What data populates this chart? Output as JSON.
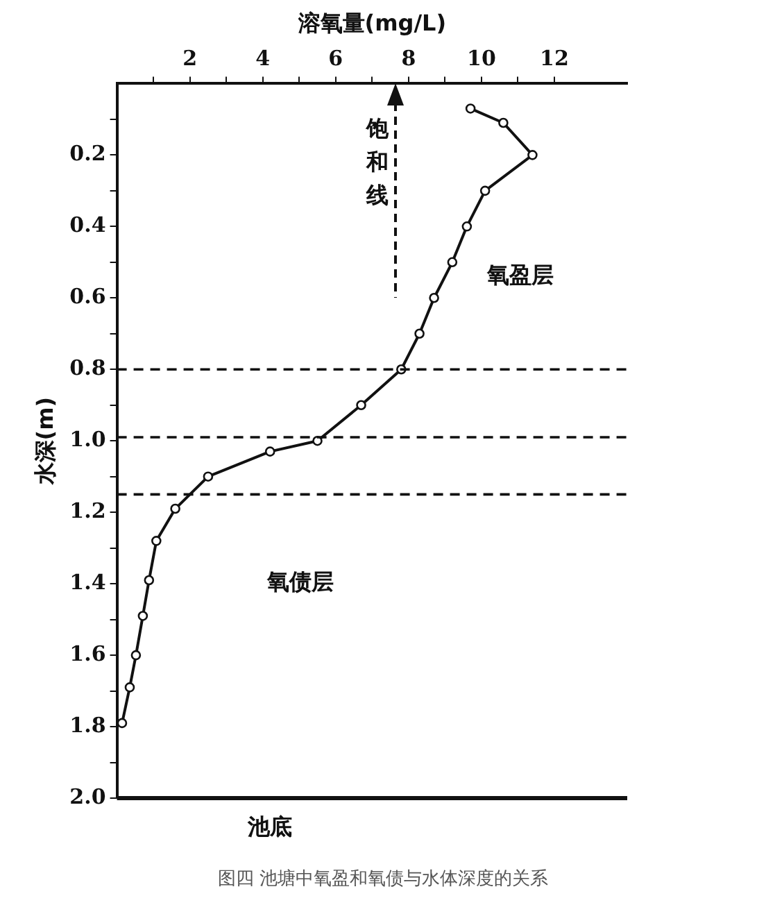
{
  "chart_data": {
    "type": "line",
    "xlabel": "溶氧量(mg/L)",
    "ylabel": "水深(m)",
    "xlim": [
      0,
      14
    ],
    "xticks": [
      {
        "value": 1,
        "label": null
      },
      2,
      {
        "value": 3,
        "label": null
      },
      4,
      {
        "value": 5,
        "label": null
      },
      6,
      {
        "value": 7,
        "label": null
      },
      8,
      {
        "value": 9,
        "label": null
      },
      10,
      {
        "value": 11,
        "label": null
      },
      12
    ],
    "ylim": [
      2.0,
      0
    ],
    "yticks": [
      {
        "value": 0.1,
        "label": null
      },
      0.2,
      {
        "value": 0.3,
        "label": null
      },
      0.4,
      {
        "value": 0.5,
        "label": null
      },
      0.6,
      {
        "value": 0.7,
        "label": null
      },
      0.8,
      {
        "value": 0.9,
        "label": null
      },
      {
        "value": 1.0,
        "label": "1.0"
      },
      {
        "value": 1.1,
        "label": null
      },
      1.2,
      {
        "value": 1.3,
        "label": null
      },
      1.4,
      {
        "value": 1.5,
        "label": null
      },
      1.6,
      {
        "value": 1.7,
        "label": null
      },
      1.8,
      {
        "value": 1.9,
        "label": null
      },
      {
        "value": 2.0,
        "label": "2.0"
      }
    ],
    "series": [
      {
        "color": "#111111",
        "marker": "circle",
        "line_style": "solid",
        "x": [
          9.7,
          10.6,
          11.4,
          10.1,
          9.6,
          9.2,
          8.7,
          8.3,
          7.8,
          6.7,
          5.5,
          4.2,
          2.5,
          1.6,
          1.08,
          0.88,
          0.71,
          0.52,
          0.35,
          0.14
        ],
        "values": [
          0.07,
          0.11,
          0.2,
          0.3,
          0.4,
          0.5,
          0.6,
          0.7,
          0.8,
          0.9,
          1.0,
          1.03,
          1.1,
          1.19,
          1.28,
          1.39,
          1.49,
          1.6,
          1.69,
          1.79
        ]
      }
    ],
    "ref_lines": [
      {
        "axis": "y",
        "value": 0.8,
        "line_style": "dashed"
      },
      {
        "axis": "y",
        "value": 0.99,
        "line_style": "dashed"
      },
      {
        "axis": "y",
        "value": 1.15,
        "line_style": "dashed"
      },
      {
        "axis": "y",
        "value": 2.0,
        "label": "池底",
        "line_style": "solid"
      }
    ],
    "annotations": [
      "饱和线",
      "氧盈层",
      "氧债层",
      "图四  池塘中氧盈和氧债与水体深度的关系"
    ],
    "grid": false,
    "legend": false
  }
}
